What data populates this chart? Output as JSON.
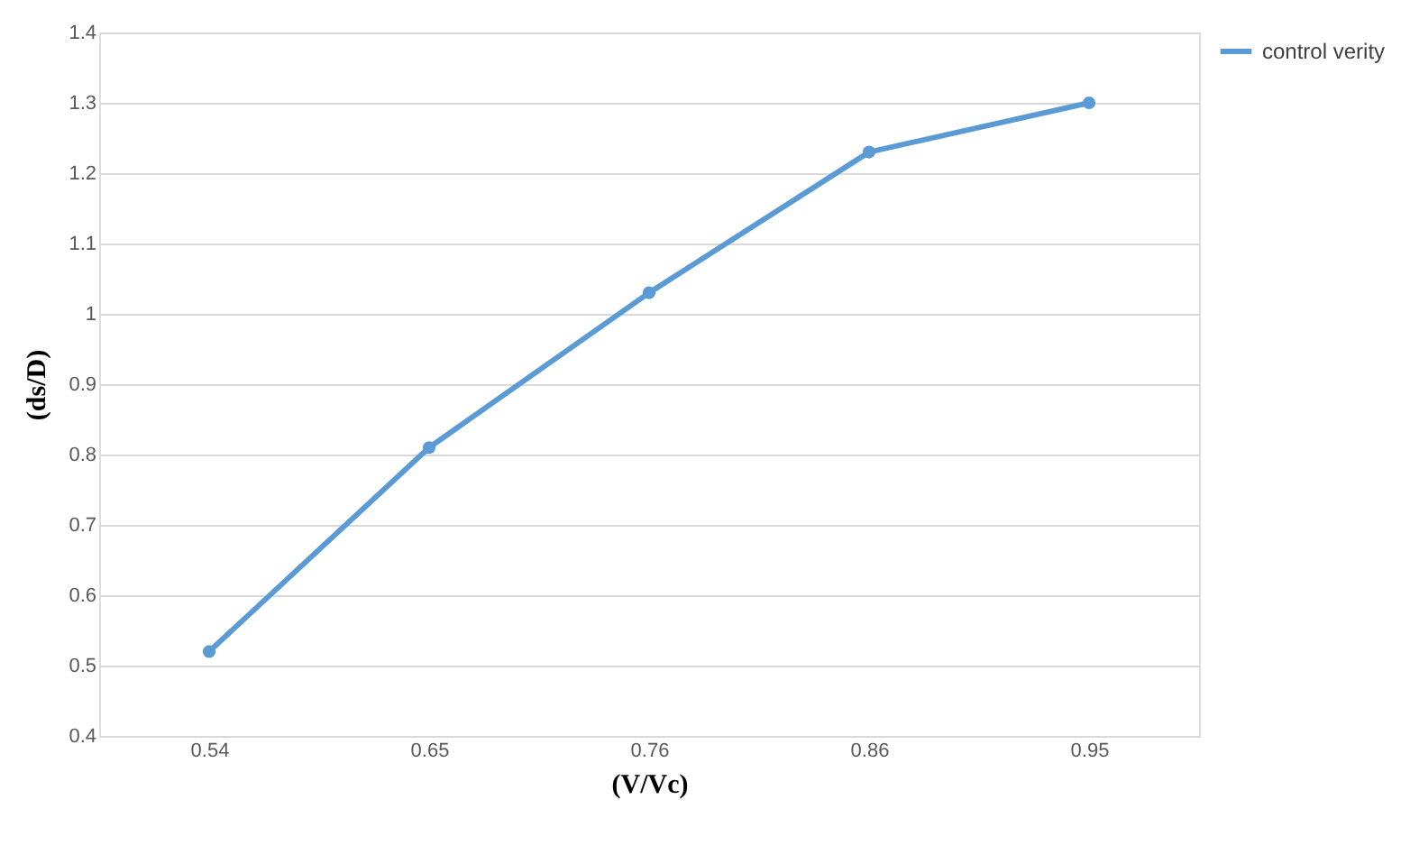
{
  "chart_data": {
    "type": "line",
    "xlabel": "(V/Vc)",
    "ylabel": "(ds/D)",
    "categories": [
      "0.54",
      "0.65",
      "0.76",
      "0.86",
      "0.95"
    ],
    "series": [
      {
        "name": "control verity",
        "color": "#5b9bd5",
        "values": [
          0.52,
          0.81,
          1.03,
          1.23,
          1.3
        ]
      }
    ],
    "ylim": [
      0.4,
      1.4
    ],
    "yticks": [
      0.4,
      0.5,
      0.6,
      0.7,
      0.8,
      0.9,
      1,
      1.1,
      1.2,
      1.3,
      1.4
    ],
    "grid": "y",
    "legend": "right",
    "marker": "circle",
    "line_style": "solid"
  }
}
